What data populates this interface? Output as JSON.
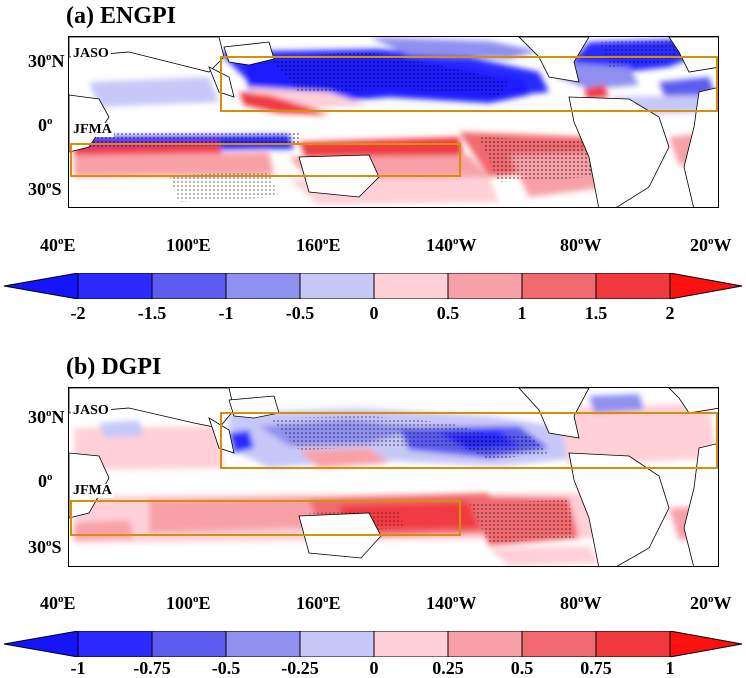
{
  "panels": [
    {
      "id": "a",
      "title": "(a) ENGPI",
      "seasons": [
        "JASO",
        "JFMA"
      ],
      "colorbar": {
        "labels": [
          "-2",
          "-1.5",
          "-1",
          "-0.5",
          "0",
          "0.5",
          "1",
          "1.5",
          "2"
        ],
        "colors": [
          "#2b2bff",
          "#5c5cf0",
          "#9090f0",
          "#c8c8f8",
          "#ffd0d8",
          "#f8a0a8",
          "#f06a70",
          "#f03a40"
        ],
        "arrow_low": "#1414ff",
        "arrow_high": "#ff1010"
      }
    },
    {
      "id": "b",
      "title": "(b) DGPI",
      "seasons": [
        "JASO",
        "JFMA"
      ],
      "colorbar": {
        "labels": [
          "-1",
          "-0.75",
          "-0.5",
          "-0.25",
          "0",
          "0.25",
          "0.5",
          "0.75",
          "1"
        ],
        "colors": [
          "#2b2bff",
          "#5c5cf0",
          "#9090f0",
          "#c8c8f8",
          "#ffd0d8",
          "#f8a0a8",
          "#f06a70",
          "#f03a40"
        ],
        "arrow_low": "#1414ff",
        "arrow_high": "#ff1010"
      }
    }
  ],
  "x_ticks": [
    "40",
    "100",
    "160",
    "140",
    "80",
    "20"
  ],
  "x_hemi": [
    "E",
    "E",
    "E",
    "W",
    "W",
    "W"
  ],
  "y_ticks": [
    {
      "num": "30",
      "hemi": "N"
    },
    {
      "num": "0",
      "hemi": ""
    },
    {
      "num": "30",
      "hemi": "S"
    }
  ],
  "degree_mark": "o",
  "box_color": "#d4900a",
  "boxes": {
    "JASO": {
      "lon_start": "110°E",
      "lon_end": "20°W",
      "lat_start": "5°N",
      "lat_end": "30°N"
    },
    "JFMA": {
      "lon_start": "40°E",
      "lon_end": "140°W",
      "lat_start": "25°S",
      "lat_end": "10°S"
    }
  }
}
